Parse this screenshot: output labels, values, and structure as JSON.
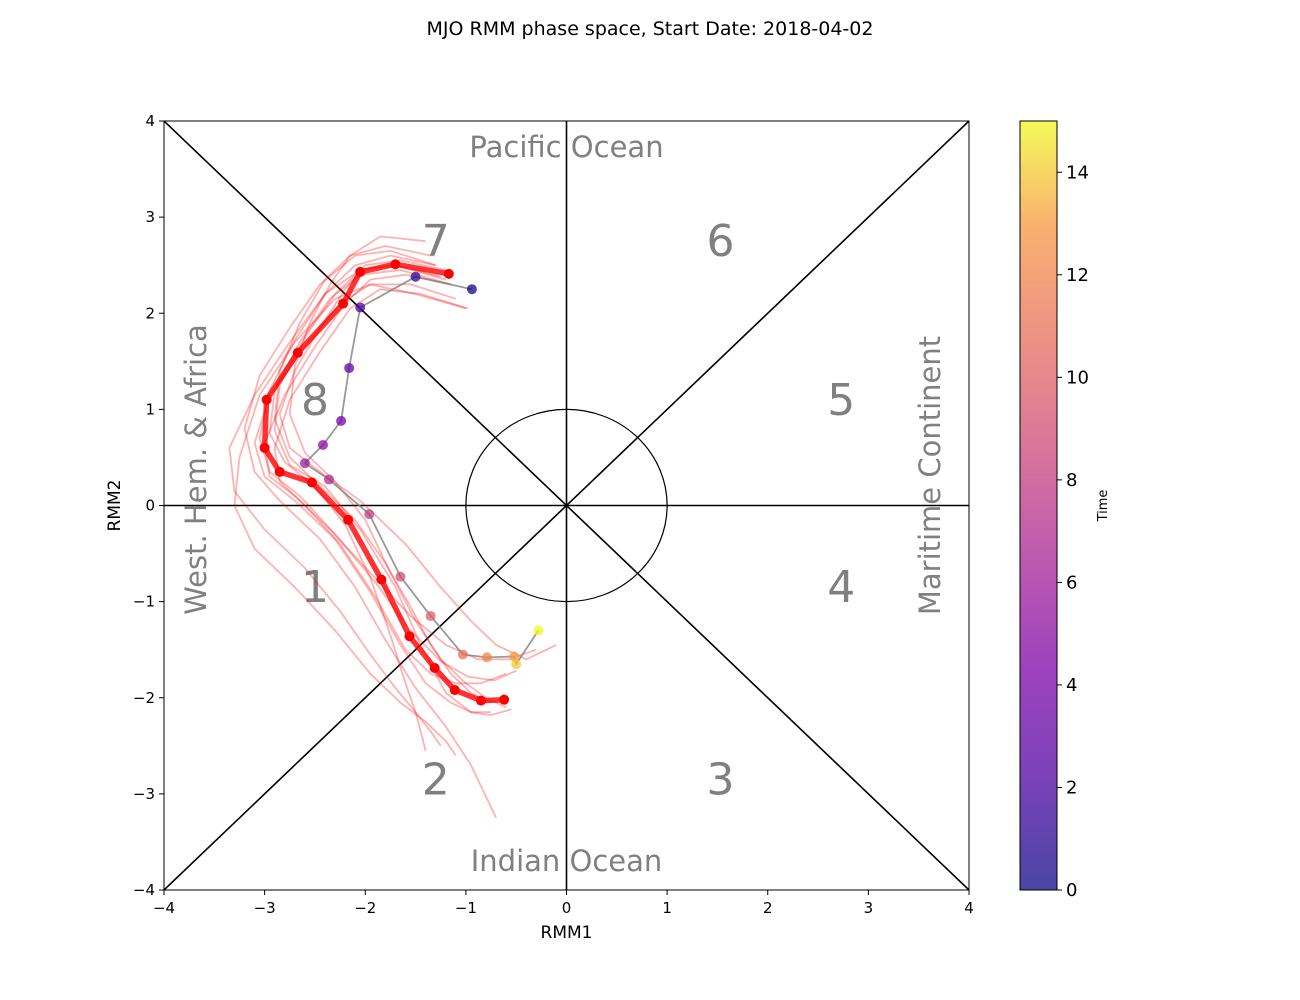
{
  "chart_data": {
    "type": "line",
    "title": "MJO RMM phase space, Start Date: 2018-04-02",
    "xlabel": "RMM1",
    "ylabel": "RMM2",
    "xlim": [
      -4,
      4
    ],
    "ylim": [
      -4,
      4
    ],
    "x_ticks": [
      "−4",
      "−3",
      "−2",
      "−1",
      "0",
      "1",
      "2",
      "3",
      "4"
    ],
    "y_ticks": [
      "−4",
      "−3",
      "−2",
      "−1",
      "0",
      "1",
      "2",
      "3",
      "4"
    ],
    "grid": false,
    "phase_labels": [
      {
        "text": "1",
        "x": -2.5,
        "y": -0.85
      },
      {
        "text": "2",
        "x": -1.3,
        "y": -2.85
      },
      {
        "text": "3",
        "x": 1.53,
        "y": -2.85
      },
      {
        "text": "4",
        "x": 2.73,
        "y": -0.85
      },
      {
        "text": "5",
        "x": 2.73,
        "y": 1.1
      },
      {
        "text": "6",
        "x": 1.53,
        "y": 2.75
      },
      {
        "text": "7",
        "x": -1.3,
        "y": 2.75
      },
      {
        "text": "8",
        "x": -2.5,
        "y": 1.1
      }
    ],
    "region_labels": {
      "top": "Pacific Ocean",
      "bottom": "Indian Ocean",
      "left": "West. Hem. & Africa",
      "right": "Maritime Continent"
    },
    "unit_circle_radius": 1,
    "colorbar": {
      "label": "Time",
      "range": [
        0,
        15
      ],
      "ticks": [
        "0",
        "2",
        "4",
        "6",
        "8",
        "10",
        "12",
        "14"
      ],
      "colormap": "plasma",
      "alpha": 0.7
    },
    "observed": {
      "color": "#808080",
      "x": [
        -0.94,
        -1.5,
        -2.05,
        -2.16,
        -2.24,
        -2.42,
        -2.6,
        -2.36,
        -1.96,
        -1.65,
        -1.35,
        -1.03,
        -0.79,
        -0.52,
        -0.5,
        -0.28
      ],
      "y": [
        2.25,
        2.38,
        2.06,
        1.43,
        0.88,
        0.63,
        0.44,
        0.27,
        -0.09,
        -0.74,
        -1.15,
        -1.55,
        -1.58,
        -1.57,
        -1.65,
        -1.3
      ]
    },
    "ensemble_mean": {
      "color": "#ff0000",
      "x": [
        -1.17,
        -1.7,
        -2.05,
        -2.22,
        -2.67,
        -2.98,
        -3.0,
        -2.85,
        -2.53,
        -2.17,
        -1.84,
        -1.56,
        -1.31,
        -1.11,
        -0.85,
        -0.62
      ],
      "y": [
        2.41,
        2.51,
        2.43,
        2.1,
        1.59,
        1.1,
        0.6,
        0.35,
        0.24,
        -0.15,
        -0.77,
        -1.36,
        -1.69,
        -1.92,
        -2.03,
        -2.02
      ]
    },
    "ensemble_members": [
      {
        "x": [
          -1.3,
          -1.75,
          -2.1,
          -2.45,
          -2.75,
          -3.05,
          -3.2,
          -3.1,
          -2.85,
          -2.45,
          -2.1,
          -1.8,
          -1.5,
          -1.2,
          -0.95,
          -0.7
        ],
        "y": [
          2.5,
          2.65,
          2.6,
          2.3,
          1.85,
          1.35,
          0.8,
          0.35,
          0.05,
          -0.35,
          -0.85,
          -1.4,
          -1.9,
          -2.3,
          -2.7,
          -3.25
        ]
      },
      {
        "x": [
          -1.25,
          -1.7,
          -2.05,
          -2.3,
          -2.6,
          -2.85,
          -2.9,
          -2.75,
          -2.4,
          -2.05,
          -1.7,
          -1.45,
          -1.2,
          -0.95,
          -0.75,
          -0.55
        ],
        "y": [
          2.38,
          2.5,
          2.45,
          2.2,
          1.75,
          1.25,
          0.78,
          0.42,
          0.2,
          -0.25,
          -0.85,
          -1.45,
          -1.95,
          -2.15,
          -2.18,
          -2.12
        ]
      },
      {
        "x": [
          -1.4,
          -1.85,
          -2.15,
          -2.35,
          -2.55,
          -2.7,
          -2.75,
          -2.6,
          -2.3,
          -2.0,
          -1.75,
          -1.5,
          -1.25,
          -1.0,
          -0.8,
          -0.6
        ],
        "y": [
          2.75,
          2.8,
          2.6,
          2.3,
          1.9,
          1.45,
          0.95,
          0.55,
          0.25,
          -0.15,
          -0.7,
          -1.2,
          -1.6,
          -1.85,
          -2.0,
          -2.1
        ]
      },
      {
        "x": [
          -1.0,
          -1.5,
          -1.95,
          -2.3,
          -2.7,
          -3.05,
          -3.25,
          -3.3,
          -3.1,
          -2.7,
          -2.3,
          -1.95,
          -1.65,
          -1.4,
          -1.2,
          -1.1
        ],
        "y": [
          2.05,
          2.2,
          2.3,
          2.15,
          1.7,
          1.15,
          0.5,
          0.0,
          -0.45,
          -0.85,
          -1.3,
          -1.75,
          -2.05,
          -2.25,
          -2.45,
          -2.6
        ]
      },
      {
        "x": [
          -1.15,
          -1.65,
          -2.05,
          -2.35,
          -2.65,
          -2.9,
          -2.95,
          -2.8,
          -2.5,
          -2.2,
          -1.95,
          -1.75,
          -1.6,
          -1.5,
          -1.45,
          -1.4
        ],
        "y": [
          2.3,
          2.45,
          2.4,
          2.15,
          1.7,
          1.2,
          0.75,
          0.45,
          0.2,
          -0.2,
          -0.75,
          -1.35,
          -1.85,
          -2.15,
          -2.35,
          -2.55
        ]
      },
      {
        "x": [
          -1.2,
          -1.65,
          -2.0,
          -2.2,
          -2.45,
          -2.7,
          -2.85,
          -2.75,
          -2.45,
          -2.05,
          -1.6,
          -1.25,
          -0.95,
          -0.7,
          -0.4,
          -0.1
        ],
        "y": [
          2.45,
          2.55,
          2.5,
          2.25,
          1.85,
          1.4,
          0.95,
          0.6,
          0.35,
          0.05,
          -0.4,
          -0.85,
          -1.2,
          -1.45,
          -1.6,
          -1.45
        ]
      },
      {
        "x": [
          -1.3,
          -1.75,
          -2.1,
          -2.4,
          -2.7,
          -2.95,
          -3.05,
          -2.95,
          -2.65,
          -2.3,
          -1.9,
          -1.55,
          -1.25,
          -0.98,
          -0.72,
          -0.5
        ],
        "y": [
          2.5,
          2.6,
          2.5,
          2.2,
          1.72,
          1.2,
          0.7,
          0.35,
          0.1,
          -0.3,
          -0.8,
          -1.3,
          -1.62,
          -1.78,
          -1.82,
          -1.72
        ]
      },
      {
        "x": [
          -1.2,
          -1.7,
          -2.05,
          -2.4,
          -2.75,
          -3.1,
          -3.35,
          -3.3,
          -3.0,
          -2.6,
          -2.25,
          -1.95,
          -1.7,
          -1.5,
          -1.35,
          -1.25
        ],
        "y": [
          2.35,
          2.5,
          2.45,
          2.2,
          1.7,
          1.15,
          0.6,
          0.15,
          -0.25,
          -0.65,
          -1.1,
          -1.55,
          -1.9,
          -2.15,
          -2.35,
          -2.5
        ]
      },
      {
        "x": [
          -1.1,
          -1.55,
          -1.95,
          -2.25,
          -2.6,
          -2.95,
          -3.1,
          -3.0,
          -2.7,
          -2.3,
          -1.95,
          -1.65,
          -1.4,
          -1.15,
          -0.95,
          -0.75
        ],
        "y": [
          2.15,
          2.3,
          2.3,
          2.1,
          1.65,
          1.15,
          0.65,
          0.3,
          0.05,
          -0.35,
          -0.9,
          -1.45,
          -1.85,
          -2.05,
          -2.15,
          -2.15
        ]
      },
      {
        "x": [
          -0.98,
          -1.45,
          -1.85,
          -2.15,
          -2.45,
          -2.75,
          -2.9,
          -2.85,
          -2.6,
          -2.25,
          -1.9,
          -1.6,
          -1.35,
          -1.1,
          -0.85,
          -0.6
        ],
        "y": [
          2.05,
          2.2,
          2.25,
          2.05,
          1.6,
          1.1,
          0.6,
          0.25,
          0.0,
          -0.4,
          -0.95,
          -1.5,
          -1.75,
          -1.85,
          -1.85,
          -1.75
        ]
      },
      {
        "x": [
          -1.35,
          -1.8,
          -2.15,
          -2.4,
          -2.65,
          -2.85,
          -2.9,
          -2.75,
          -2.45,
          -2.1,
          -1.8,
          -1.55,
          -1.35,
          -1.15,
          -0.95,
          -0.75
        ],
        "y": [
          2.6,
          2.7,
          2.6,
          2.35,
          1.9,
          1.4,
          0.9,
          0.5,
          0.2,
          -0.15,
          -0.6,
          -1.05,
          -1.45,
          -1.75,
          -1.95,
          -2.05
        ]
      },
      {
        "x": [
          -1.15,
          -1.6,
          -1.95,
          -2.2,
          -2.5,
          -2.8,
          -3.0,
          -2.95,
          -2.7,
          -2.35,
          -1.95,
          -1.55,
          -1.2,
          -0.88,
          -0.58,
          -0.3
        ],
        "y": [
          2.3,
          2.4,
          2.35,
          2.1,
          1.65,
          1.15,
          0.65,
          0.3,
          0.1,
          -0.25,
          -0.7,
          -1.15,
          -1.45,
          -1.6,
          -1.6,
          -1.5
        ]
      }
    ]
  }
}
